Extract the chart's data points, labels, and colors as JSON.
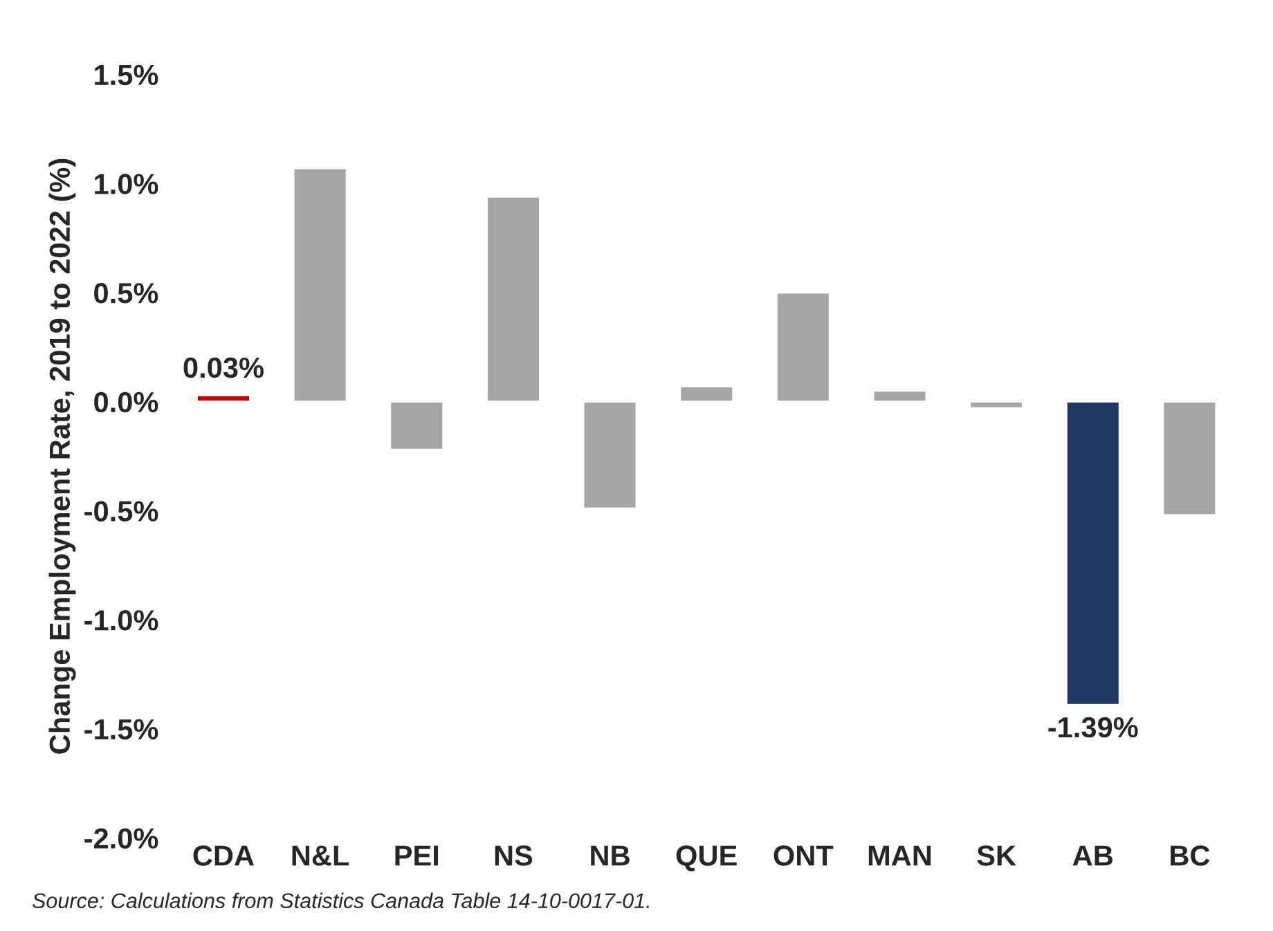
{
  "chart_data": {
    "type": "bar",
    "ylabel": "Change Employment Rate, 2019 to 2022 (%)",
    "categories": [
      "CDA",
      "N&L",
      "PEI",
      "NS",
      "NB",
      "QUE",
      "ONT",
      "MAN",
      "SK",
      "AB",
      "BC"
    ],
    "values": [
      0.03,
      1.07,
      -0.22,
      0.94,
      -0.49,
      0.07,
      0.5,
      0.05,
      -0.03,
      -1.39,
      -0.52
    ],
    "colors": [
      "#c00000",
      "#a6a6a6",
      "#a6a6a6",
      "#a6a6a6",
      "#a6a6a6",
      "#a6a6a6",
      "#a6a6a6",
      "#a6a6a6",
      "#a6a6a6",
      "#1f3864",
      "#a6a6a6"
    ],
    "value_labels": [
      "0.03%",
      null,
      null,
      null,
      null,
      null,
      null,
      null,
      null,
      "-1.39%",
      null
    ],
    "ylim": [
      -2.0,
      1.5
    ],
    "yticks": [
      {
        "value": -2.0,
        "label": "-2.0%"
      },
      {
        "value": -1.5,
        "label": "-1.5%"
      },
      {
        "value": -1.0,
        "label": "-1.0%"
      },
      {
        "value": -0.5,
        "label": "-0.5%"
      },
      {
        "value": 0.0,
        "label": "0.0%"
      },
      {
        "value": 0.5,
        "label": "0.5%"
      },
      {
        "value": 1.0,
        "label": "1.0%"
      },
      {
        "value": 1.5,
        "label": "1.5%"
      }
    ],
    "grid": false,
    "annotations": [
      "Source: Calculations from Statistics Canada Table 14-10-0017-01."
    ]
  }
}
